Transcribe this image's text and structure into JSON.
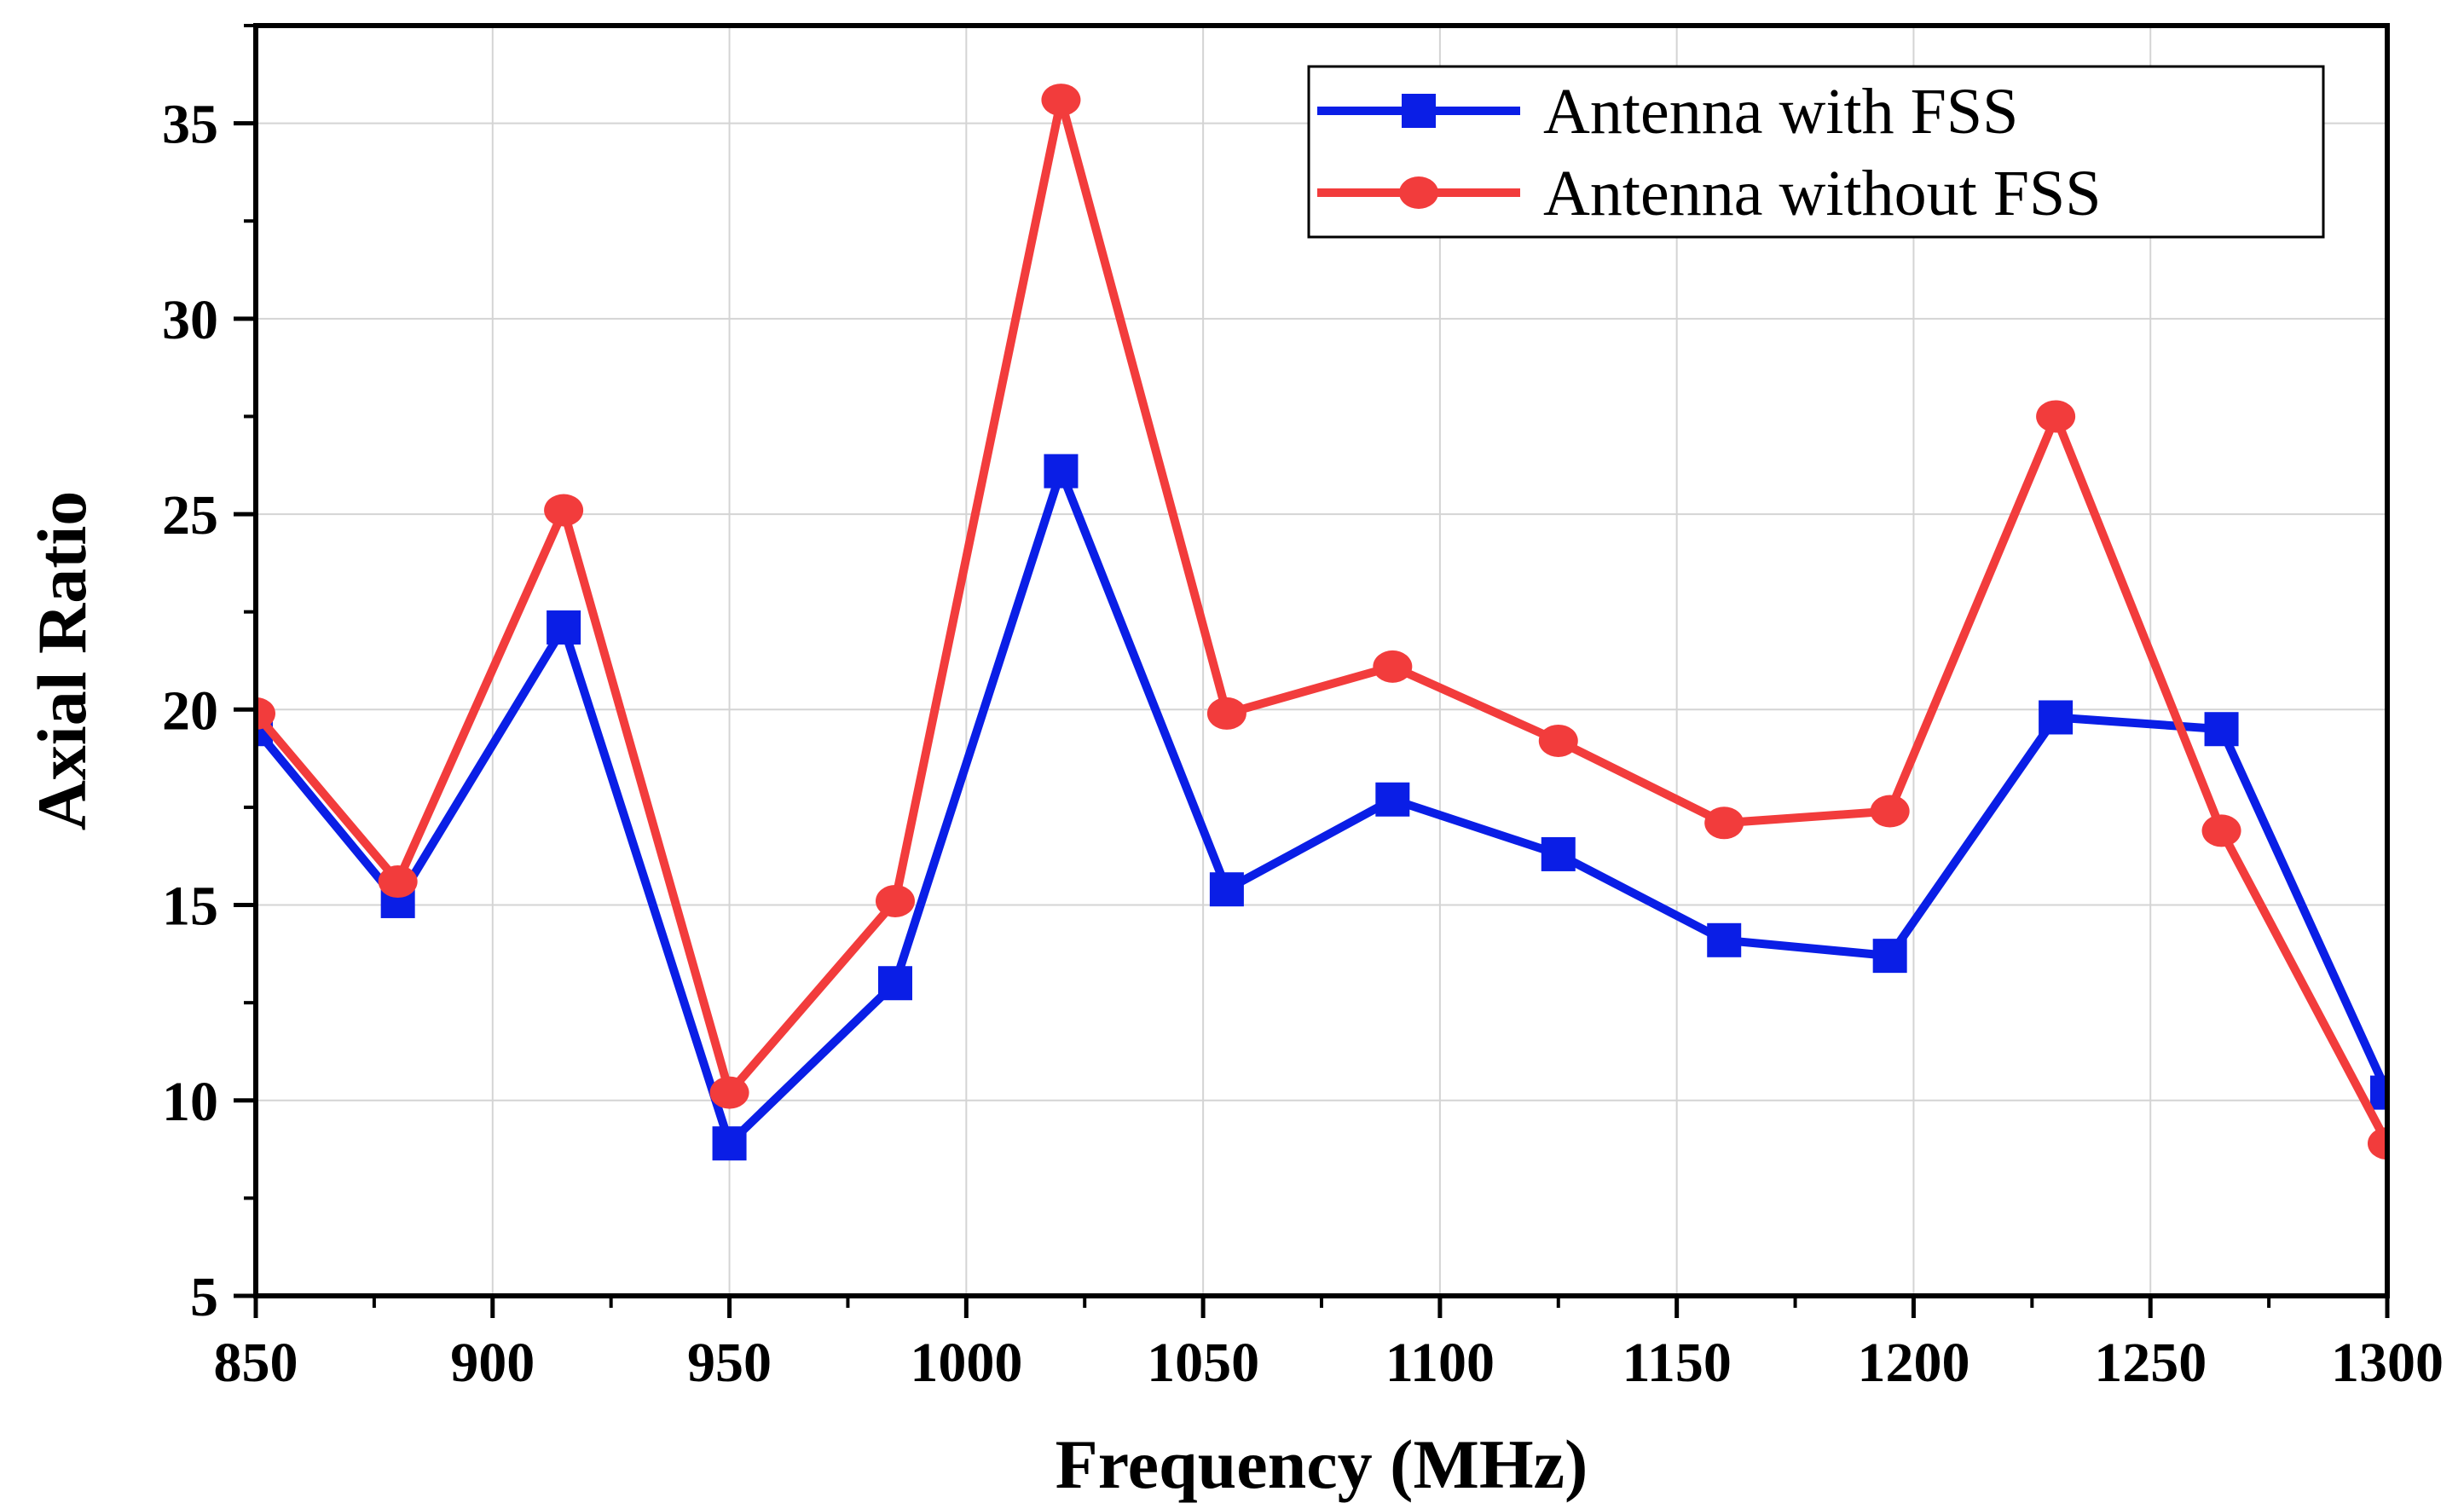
{
  "chart_data": {
    "type": "line",
    "title": "",
    "xlabel": "Frequency (MHz)",
    "ylabel": "Axial Ratio",
    "xlim": [
      850,
      1300
    ],
    "ylim": [
      5,
      37.5
    ],
    "xticks": [
      850,
      900,
      950,
      1000,
      1050,
      1100,
      1150,
      1200,
      1250,
      1300
    ],
    "yticks": [
      5,
      10,
      15,
      20,
      25,
      30,
      35
    ],
    "grid": true,
    "legend_position": "top-right",
    "x": [
      850,
      880,
      915,
      950,
      985,
      1020,
      1055,
      1090,
      1125,
      1160,
      1195,
      1230,
      1265,
      1300
    ],
    "series": [
      {
        "name": "Antenna with FSS",
        "color": "#0a1ee6",
        "marker": "square",
        "values": [
          19.5,
          15.1,
          22.1,
          8.9,
          13.0,
          26.1,
          15.4,
          17.7,
          16.3,
          14.1,
          13.7,
          19.8,
          19.5,
          10.2
        ]
      },
      {
        "name": "Antenna without FSS",
        "color": "#f23c3c",
        "marker": "circle",
        "values": [
          19.9,
          15.6,
          25.1,
          10.2,
          15.1,
          35.6,
          19.9,
          21.1,
          19.2,
          17.1,
          17.4,
          27.5,
          16.9,
          8.9
        ]
      }
    ]
  }
}
